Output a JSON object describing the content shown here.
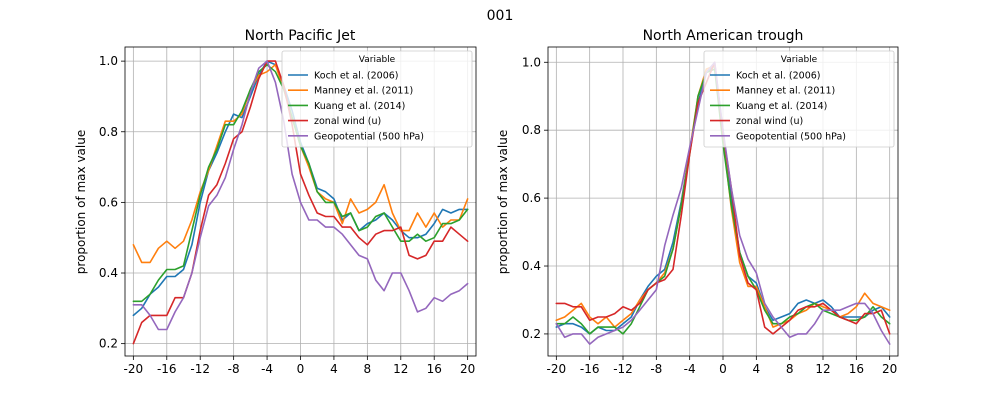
{
  "figure": {
    "suptitle": "001"
  },
  "legend": {
    "title": "Variable"
  },
  "chart_data": [
    {
      "type": "line",
      "title": "North Pacific Jet",
      "xlabel": "",
      "ylabel": "proportion of max value",
      "xlim": [
        -21,
        21
      ],
      "ylim": [
        0.165,
        1.04
      ],
      "xticks": [
        -20,
        -16,
        -12,
        -8,
        -4,
        0,
        4,
        8,
        12,
        16,
        20
      ],
      "yticks": [
        0.2,
        0.4,
        0.6,
        0.8,
        1.0
      ],
      "ytick_labels": [
        "0.2",
        "0.4",
        "0.6",
        "0.8",
        "1.0"
      ],
      "grid": true,
      "legend_position": "top-right",
      "x": [
        -20,
        -19,
        -18,
        -17,
        -16,
        -15,
        -14,
        -13,
        -12,
        -11,
        -10,
        -9,
        -8,
        -7,
        -6,
        -5,
        -4,
        -3,
        -2,
        -1,
        0,
        1,
        2,
        3,
        4,
        5,
        6,
        7,
        8,
        9,
        10,
        11,
        12,
        13,
        14,
        15,
        16,
        17,
        18,
        19,
        20
      ],
      "series": [
        {
          "name": "Koch et al. (2006)",
          "color": "#1f77b4",
          "values": [
            0.28,
            0.3,
            0.34,
            0.36,
            0.39,
            0.39,
            0.41,
            0.48,
            0.6,
            0.69,
            0.74,
            0.8,
            0.85,
            0.84,
            0.9,
            0.96,
            1.0,
            0.99,
            0.93,
            0.86,
            0.77,
            0.71,
            0.64,
            0.63,
            0.61,
            0.55,
            0.57,
            0.52,
            0.54,
            0.55,
            0.57,
            0.55,
            0.52,
            0.5,
            0.5,
            0.51,
            0.54,
            0.58,
            0.57,
            0.58,
            0.58
          ]
        },
        {
          "name": "Manney et al. (2011)",
          "color": "#ff7f0e",
          "values": [
            0.48,
            0.43,
            0.43,
            0.47,
            0.49,
            0.47,
            0.49,
            0.55,
            0.63,
            0.69,
            0.76,
            0.83,
            0.83,
            0.85,
            0.92,
            0.96,
            0.97,
            0.99,
            0.92,
            0.84,
            0.76,
            0.7,
            0.63,
            0.61,
            0.6,
            0.54,
            0.61,
            0.57,
            0.58,
            0.6,
            0.65,
            0.57,
            0.52,
            0.52,
            0.57,
            0.53,
            0.57,
            0.53,
            0.55,
            0.55,
            0.61
          ]
        },
        {
          "name": "Kuang et al. (2014)",
          "color": "#2ca02c",
          "values": [
            0.32,
            0.32,
            0.34,
            0.38,
            0.41,
            0.41,
            0.42,
            0.52,
            0.62,
            0.7,
            0.75,
            0.82,
            0.82,
            0.86,
            0.92,
            0.97,
            0.99,
            0.97,
            0.92,
            0.84,
            0.76,
            0.71,
            0.63,
            0.6,
            0.6,
            0.56,
            0.57,
            0.52,
            0.53,
            0.56,
            0.57,
            0.53,
            0.49,
            0.49,
            0.51,
            0.49,
            0.5,
            0.54,
            0.54,
            0.55,
            0.58
          ]
        },
        {
          "name": "zonal wind (u)",
          "color": "#d62728",
          "values": [
            0.2,
            0.26,
            0.28,
            0.28,
            0.28,
            0.33,
            0.33,
            0.4,
            0.52,
            0.62,
            0.65,
            0.71,
            0.78,
            0.8,
            0.87,
            0.95,
            1.0,
            1.0,
            0.93,
            0.82,
            0.68,
            0.62,
            0.57,
            0.56,
            0.56,
            0.53,
            0.53,
            0.5,
            0.48,
            0.51,
            0.52,
            0.52,
            0.53,
            0.45,
            0.44,
            0.45,
            0.49,
            0.49,
            0.53,
            0.51,
            0.49
          ]
        },
        {
          "name": "Geopotential (500 hPa)",
          "color": "#9467bd",
          "values": [
            0.31,
            0.31,
            0.28,
            0.24,
            0.24,
            0.29,
            0.33,
            0.4,
            0.5,
            0.59,
            0.62,
            0.67,
            0.75,
            0.82,
            0.91,
            0.98,
            1.0,
            0.94,
            0.83,
            0.68,
            0.6,
            0.55,
            0.55,
            0.53,
            0.53,
            0.51,
            0.48,
            0.45,
            0.44,
            0.38,
            0.35,
            0.4,
            0.4,
            0.35,
            0.29,
            0.3,
            0.33,
            0.32,
            0.34,
            0.35,
            0.37
          ]
        }
      ]
    },
    {
      "type": "line",
      "title": "North American trough",
      "xlabel": "",
      "ylabel": "proportion of max value",
      "xlim": [
        -21,
        21
      ],
      "ylim": [
        0.135,
        1.045
      ],
      "xticks": [
        -20,
        -16,
        -12,
        -8,
        -4,
        0,
        4,
        8,
        12,
        16,
        20
      ],
      "yticks": [
        0.2,
        0.4,
        0.6,
        0.8,
        1.0
      ],
      "ytick_labels": [
        "0.2",
        "0.4",
        "0.6",
        "0.8",
        "1.0"
      ],
      "grid": true,
      "legend_position": "top-right",
      "x": [
        -20,
        -19,
        -18,
        -17,
        -16,
        -15,
        -14,
        -13,
        -12,
        -11,
        -10,
        -9,
        -8,
        -7,
        -6,
        -5,
        -4,
        -3,
        -2,
        -1,
        0,
        1,
        2,
        3,
        4,
        5,
        6,
        7,
        8,
        9,
        10,
        11,
        12,
        13,
        14,
        15,
        16,
        17,
        18,
        19,
        20
      ],
      "series": [
        {
          "name": "Koch et al. (2006)",
          "color": "#1f77b4",
          "values": [
            0.22,
            0.23,
            0.23,
            0.22,
            0.2,
            0.22,
            0.21,
            0.21,
            0.23,
            0.25,
            0.3,
            0.34,
            0.37,
            0.39,
            0.47,
            0.59,
            0.74,
            0.88,
            0.97,
            0.99,
            0.8,
            0.6,
            0.44,
            0.37,
            0.35,
            0.28,
            0.24,
            0.25,
            0.26,
            0.29,
            0.3,
            0.29,
            0.3,
            0.28,
            0.25,
            0.25,
            0.25,
            0.25,
            0.27,
            0.28,
            0.25
          ]
        },
        {
          "name": "Manney et al. (2011)",
          "color": "#ff7f0e",
          "values": [
            0.24,
            0.25,
            0.27,
            0.29,
            0.25,
            0.23,
            0.25,
            0.22,
            0.24,
            0.26,
            0.3,
            0.33,
            0.35,
            0.38,
            0.45,
            0.58,
            0.74,
            0.9,
            0.98,
            0.99,
            0.78,
            0.57,
            0.41,
            0.34,
            0.34,
            0.28,
            0.22,
            0.23,
            0.24,
            0.26,
            0.27,
            0.29,
            0.28,
            0.27,
            0.25,
            0.26,
            0.28,
            0.32,
            0.29,
            0.28,
            0.27
          ]
        },
        {
          "name": "Kuang et al. (2014)",
          "color": "#2ca02c",
          "values": [
            0.23,
            0.23,
            0.25,
            0.23,
            0.2,
            0.22,
            0.22,
            0.22,
            0.2,
            0.23,
            0.28,
            0.33,
            0.35,
            0.37,
            0.45,
            0.58,
            0.73,
            0.9,
            0.97,
            0.98,
            0.76,
            0.58,
            0.44,
            0.37,
            0.33,
            0.27,
            0.23,
            0.23,
            0.25,
            0.26,
            0.28,
            0.29,
            0.27,
            0.26,
            0.25,
            0.24,
            0.24,
            0.25,
            0.28,
            0.25,
            0.23
          ]
        },
        {
          "name": "zonal wind (u)",
          "color": "#d62728",
          "values": [
            0.29,
            0.29,
            0.28,
            0.28,
            0.24,
            0.25,
            0.25,
            0.26,
            0.28,
            0.27,
            0.29,
            0.33,
            0.35,
            0.36,
            0.39,
            0.55,
            0.73,
            0.88,
            0.94,
            1.0,
            0.79,
            0.63,
            0.43,
            0.35,
            0.33,
            0.22,
            0.2,
            0.22,
            0.24,
            0.27,
            0.28,
            0.28,
            0.29,
            0.27,
            0.25,
            0.24,
            0.23,
            0.26,
            0.26,
            0.27,
            0.2
          ]
        },
        {
          "name": "Geopotential (500 hPa)",
          "color": "#9467bd",
          "values": [
            0.23,
            0.19,
            0.2,
            0.2,
            0.17,
            0.19,
            0.2,
            0.21,
            0.22,
            0.24,
            0.27,
            0.3,
            0.33,
            0.46,
            0.55,
            0.63,
            0.75,
            0.86,
            0.97,
            1.0,
            0.8,
            0.63,
            0.49,
            0.42,
            0.38,
            0.29,
            0.25,
            0.22,
            0.19,
            0.2,
            0.2,
            0.23,
            0.27,
            0.27,
            0.27,
            0.28,
            0.29,
            0.29,
            0.26,
            0.21,
            0.17
          ]
        }
      ]
    }
  ]
}
